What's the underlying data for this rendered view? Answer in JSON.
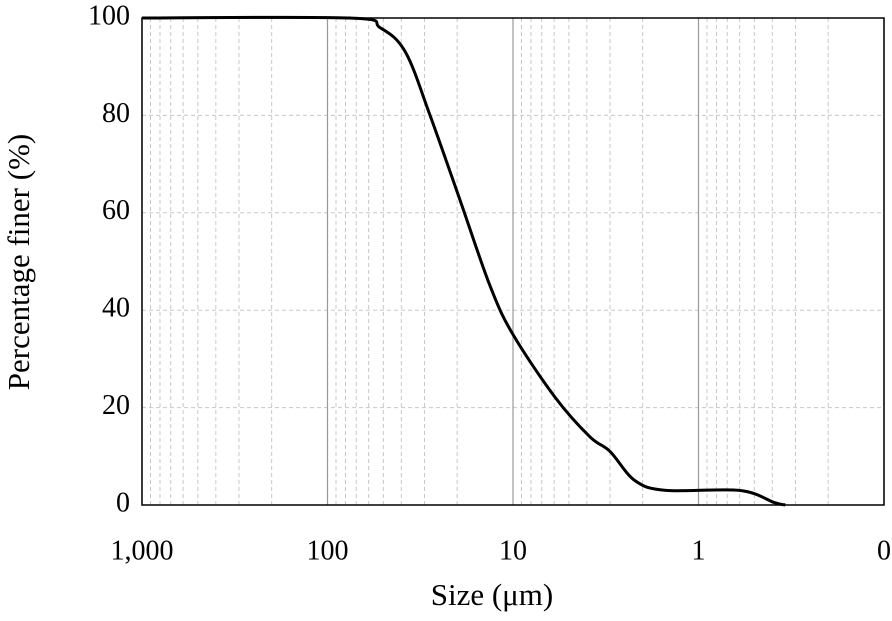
{
  "chart_data": {
    "type": "line",
    "x_label": "Size (μm)",
    "y_label": "Percentage finer (%)",
    "x": [
      1000,
      76,
      52,
      38,
      28,
      19.3,
      13.3,
      10,
      5.9,
      3.85,
      3.0,
      2.2,
      1.5,
      0.6,
      0.39,
      0.34
    ],
    "values": [
      100,
      100,
      98,
      93,
      80,
      62.6,
      45,
      35,
      22,
      14,
      11,
      5,
      3,
      3,
      0.5,
      0
    ],
    "color": "#000000",
    "xscale": "log",
    "xlim": [
      1000,
      0.1
    ],
    "xticks": [
      {
        "value": 1000,
        "label": "1,000"
      },
      100,
      10,
      1,
      {
        "value": 0.1,
        "label": "0"
      }
    ],
    "ylim": [
      0,
      100
    ],
    "yticks": [
      0,
      20,
      40,
      60,
      80,
      100
    ],
    "grid": true,
    "minor_grid": true
  }
}
